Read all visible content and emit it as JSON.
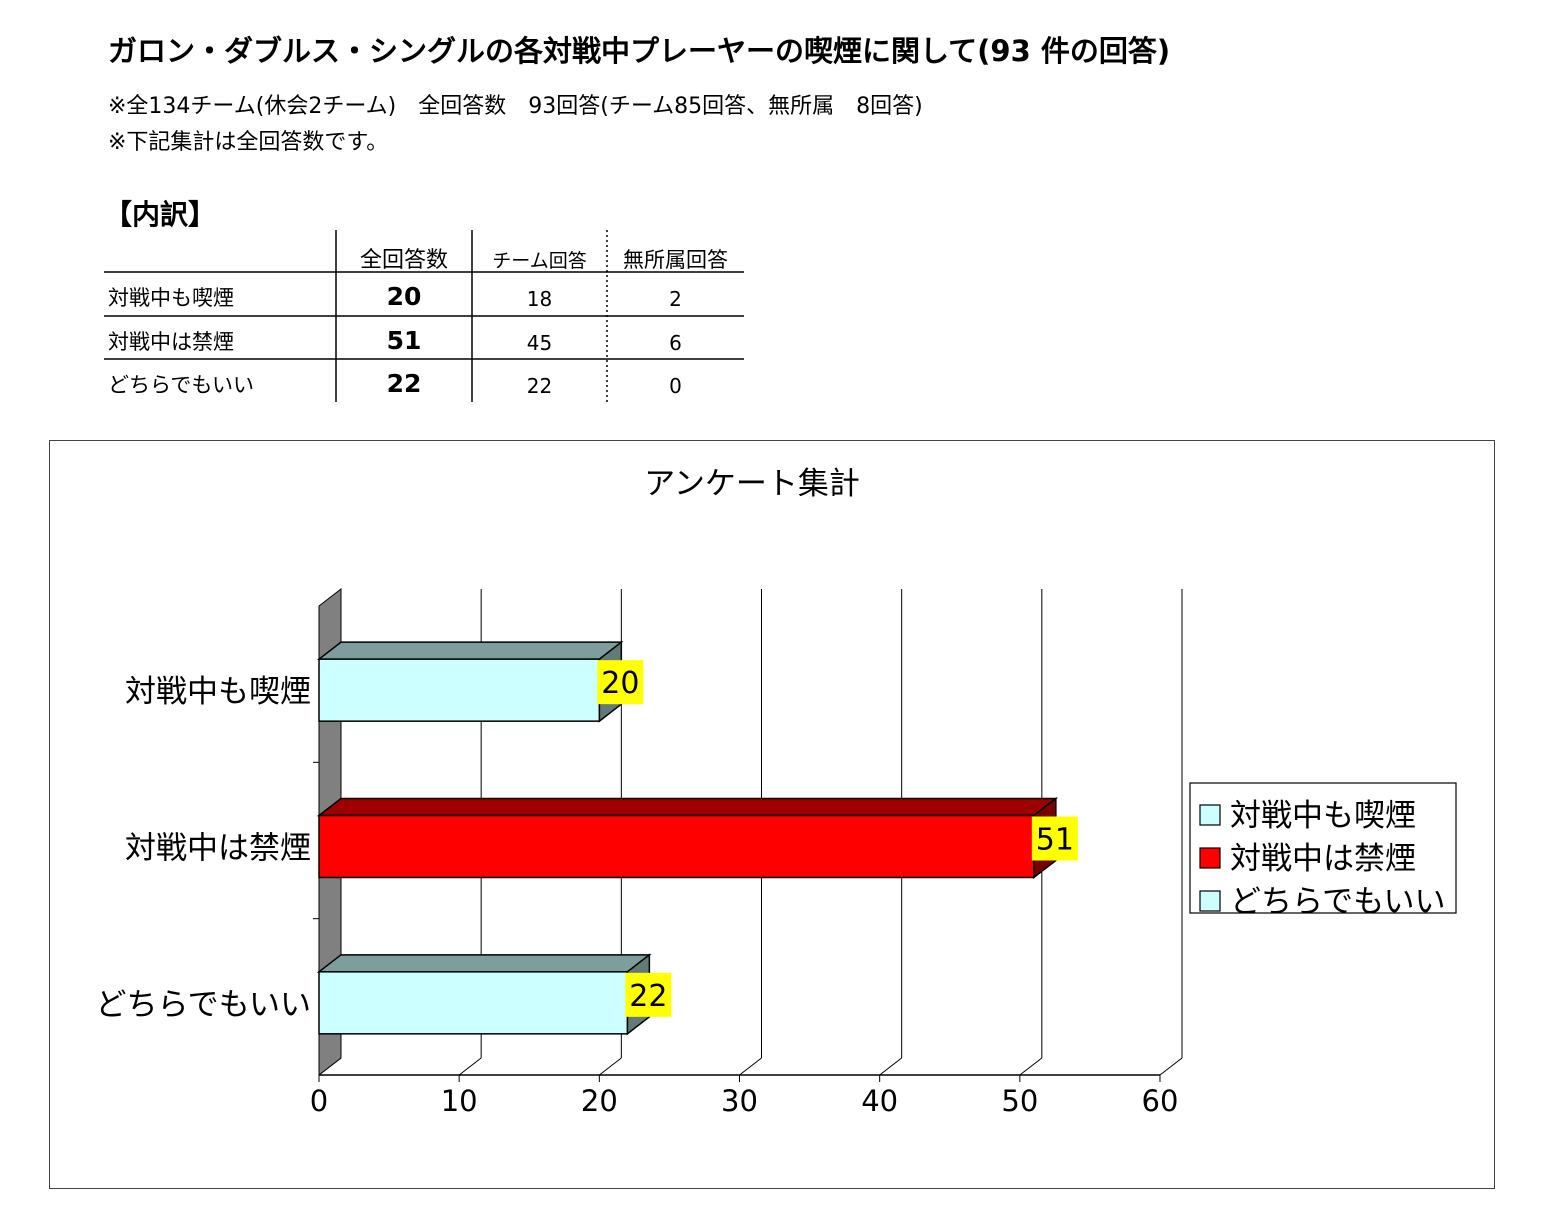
{
  "title": "ガロン・ダブルス・シングルの各対戦中プレーヤーの喫煙に関して(93 件の回答)",
  "notes": [
    "※全134チーム(休会2チーム)　全回答数　93回答(チーム85回答、無所属　8回答)",
    "※下記集計は全回答数です。"
  ],
  "breakdown": {
    "heading": "【内訳】",
    "columns": [
      "全回答数",
      "チーム回答",
      "無所属回答"
    ],
    "rows": [
      {
        "label": "対戦中も喫煙",
        "total": "20",
        "team": "18",
        "independent": "2"
      },
      {
        "label": "対戦中は禁煙",
        "total": "51",
        "team": "45",
        "independent": "6"
      },
      {
        "label": "どちらでもいい",
        "total": "22",
        "team": "22",
        "independent": "0"
      }
    ]
  },
  "chart_data": {
    "type": "bar",
    "orientation": "horizontal",
    "title": "アンケート集計",
    "categories": [
      "対戦中も喫煙",
      "対戦中は禁煙",
      "どちらでもいい"
    ],
    "values": [
      20,
      51,
      22
    ],
    "colors": [
      "#ccffff",
      "#ff0000",
      "#ccffff"
    ],
    "xlim": [
      0,
      60
    ],
    "xticks": [
      0,
      10,
      20,
      30,
      40,
      50,
      60
    ],
    "grid": true,
    "data_label_color": "#ffff00",
    "legend": {
      "position": "right",
      "entries": [
        {
          "name": "対戦中も喫煙",
          "color": "#ccffff"
        },
        {
          "name": "対戦中は禁煙",
          "color": "#ff0000"
        },
        {
          "name": "どちらでもいい",
          "color": "#ccffff"
        }
      ]
    }
  }
}
